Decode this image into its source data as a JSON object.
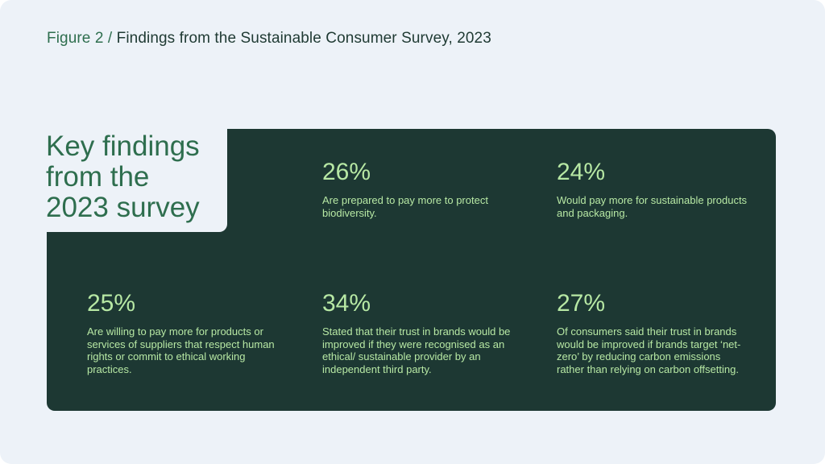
{
  "figure": {
    "prefix": "Figure 2 /",
    "title": "Findings from the Sustainable Consumer Survey, 2023"
  },
  "heading": {
    "line1": "Key findings",
    "line2": "from the",
    "line3": "2023 survey"
  },
  "stats": [
    {
      "value": "26%",
      "text": "Are prepared to pay more to protect biodiversity."
    },
    {
      "value": "24%",
      "text": "Would pay more for sustainable products and packaging."
    },
    {
      "value": "25%",
      "text": "Are willing to pay more for products or services of suppliers that respect human rights or commit to ethical working practices."
    },
    {
      "value": "34%",
      "text": "Stated that their trust in brands would be improved if they were recognised as an ethical/ sustainable provider by an independent third party."
    },
    {
      "value": "27%",
      "text": "Of consumers said their trust in brands would be improved if brands target ‘net-zero’ by reducing carbon emissions rather than relying on carbon offsetting."
    }
  ],
  "colors": {
    "background": "#edf2f8",
    "panel": "#1d3833",
    "accent_green": "#2e6e4e",
    "stat_text": "#b7e8a4"
  }
}
